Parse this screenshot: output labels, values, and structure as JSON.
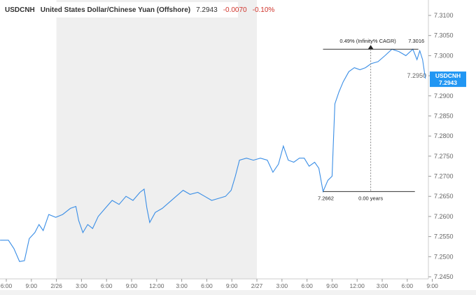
{
  "header": {
    "symbol": "USDCNH",
    "name": "United States Dollar/Chinese Yuan (Offshore)",
    "price": "7.2943",
    "change": "-0.0070",
    "change_pct": "-0.10%"
  },
  "chart_data": {
    "type": "line",
    "series": [
      {
        "name": "USDCNH",
        "color": "#3a8ee6",
        "points": [
          [
            "2/25 17:15",
            7.2541
          ],
          [
            "2/25 18:15",
            7.2541
          ],
          [
            "2/25 18:55",
            7.252
          ],
          [
            "2/25 19:35",
            7.2488
          ],
          [
            "2/25 20:10",
            7.249
          ],
          [
            "2/25 20:45",
            7.2545
          ],
          [
            "2/25 21:25",
            7.256
          ],
          [
            "2/25 21:55",
            7.258
          ],
          [
            "2/25 22:25",
            7.2565
          ],
          [
            "2/25 23:05",
            7.2605
          ],
          [
            "2/25 23:55",
            7.2598
          ],
          [
            "2/26 00:45",
            7.2605
          ],
          [
            "2/26 01:40",
            7.262
          ],
          [
            "2/26 02:20",
            7.2625
          ],
          [
            "2/26 02:40",
            7.259
          ],
          [
            "2/26 03:10",
            7.256
          ],
          [
            "2/26 03:45",
            7.258
          ],
          [
            "2/26 04:20",
            7.257
          ],
          [
            "2/26 05:00",
            7.26
          ],
          [
            "2/26 05:50",
            7.262
          ],
          [
            "2/26 06:40",
            7.264
          ],
          [
            "2/26 07:30",
            7.263
          ],
          [
            "2/26 08:20",
            7.265
          ],
          [
            "2/26 09:10",
            7.264
          ],
          [
            "2/26 10:00",
            7.266
          ],
          [
            "2/26 10:30",
            7.2668
          ],
          [
            "2/26 10:50",
            7.262
          ],
          [
            "2/26 11:10",
            7.2585
          ],
          [
            "2/26 11:50",
            7.261
          ],
          [
            "2/26 12:40",
            7.262
          ],
          [
            "2/26 13:30",
            7.2635
          ],
          [
            "2/26 14:20",
            7.265
          ],
          [
            "2/26 15:10",
            7.2665
          ],
          [
            "2/26 16:00",
            7.2655
          ],
          [
            "2/26 16:55",
            7.266
          ],
          [
            "2/26 17:45",
            7.265
          ],
          [
            "2/26 18:35",
            7.264
          ],
          [
            "2/26 19:25",
            7.2645
          ],
          [
            "2/26 20:15",
            7.265
          ],
          [
            "2/26 20:55",
            7.2665
          ],
          [
            "2/26 21:25",
            7.27
          ],
          [
            "2/26 21:55",
            7.274
          ],
          [
            "2/26 22:45",
            7.2745
          ],
          [
            "2/26 23:35",
            7.274
          ],
          [
            "2/27 00:25",
            7.2745
          ],
          [
            "2/27 01:15",
            7.274
          ],
          [
            "2/27 01:55",
            7.271
          ],
          [
            "2/27 02:35",
            7.273
          ],
          [
            "2/27 03:10",
            7.2775
          ],
          [
            "2/27 03:45",
            7.274
          ],
          [
            "2/27 04:25",
            7.2735
          ],
          [
            "2/27 05:05",
            7.2745
          ],
          [
            "2/27 05:40",
            7.2745
          ],
          [
            "2/27 06:15",
            7.2725
          ],
          [
            "2/27 06:55",
            7.2735
          ],
          [
            "2/27 07:25",
            7.272
          ],
          [
            "2/27 07:55",
            7.2662
          ],
          [
            "2/27 08:30",
            7.269
          ],
          [
            "2/27 09:00",
            7.27
          ],
          [
            "2/27 09:20",
            7.288
          ],
          [
            "2/27 09:50",
            7.291
          ],
          [
            "2/27 10:20",
            7.2935
          ],
          [
            "2/27 11:00",
            7.296
          ],
          [
            "2/27 11:40",
            7.297
          ],
          [
            "2/27 12:20",
            7.2965
          ],
          [
            "2/27 13:00",
            7.297
          ],
          [
            "2/27 13:40",
            7.298
          ],
          [
            "2/27 14:30",
            7.2985
          ],
          [
            "2/27 15:20",
            7.3
          ],
          [
            "2/27 16:10",
            7.3016
          ],
          [
            "2/27 17:00",
            7.301
          ],
          [
            "2/27 17:50",
            7.3
          ],
          [
            "2/27 18:40",
            7.3016
          ],
          [
            "2/27 19:10",
            7.299
          ],
          [
            "2/27 19:30",
            7.3012
          ],
          [
            "2/27 19:50",
            7.299
          ],
          [
            "2/27 20:10",
            7.2943
          ]
        ]
      }
    ],
    "x_ticks": [
      [
        "2/25 18:00",
        "6:00"
      ],
      [
        "2/25 21:00",
        "9:00"
      ],
      [
        "2/26 00:00",
        "2/26"
      ],
      [
        "2/26 03:00",
        "3:00"
      ],
      [
        "2/26 06:00",
        "6:00"
      ],
      [
        "2/26 09:00",
        "9:00"
      ],
      [
        "2/26 12:00",
        "12:00"
      ],
      [
        "2/26 15:00",
        "3:00"
      ],
      [
        "2/26 18:00",
        "6:00"
      ],
      [
        "2/26 21:00",
        "9:00"
      ],
      [
        "2/27 00:00",
        "2/27"
      ],
      [
        "2/27 03:00",
        "3:00"
      ],
      [
        "2/27 06:00",
        "6:00"
      ],
      [
        "2/27 09:00",
        "9:00"
      ],
      [
        "2/27 12:00",
        "12:00"
      ],
      [
        "2/27 15:00",
        "3:00"
      ],
      [
        "2/27 18:00",
        "6:00"
      ],
      [
        "2/27 21:00",
        "9:00"
      ]
    ],
    "y_ticks": [
      "7.2450",
      "7.2500",
      "7.2550",
      "7.2600",
      "7.2650",
      "7.2700",
      "7.2750",
      "7.2800",
      "7.2850",
      "7.2900",
      "7.2950",
      "7.3000",
      "7.3050",
      "7.3100"
    ],
    "ylim": [
      7.245,
      7.31
    ],
    "shaded_range": [
      "2/26 00:00",
      "2/27 00:00"
    ],
    "price_tag": {
      "label": "USDCNH",
      "value": "7.2943",
      "color": "#2196f3"
    },
    "measure": {
      "start_time": "2/27 07:55",
      "end_time": "2/27 19:20",
      "low": 7.2662,
      "high": 7.3016,
      "low_label": "7.2662",
      "high_label": "7.3016",
      "pct_label": "0.49% (Infinity% CAGR)",
      "duration_label": "0.00 years"
    }
  }
}
